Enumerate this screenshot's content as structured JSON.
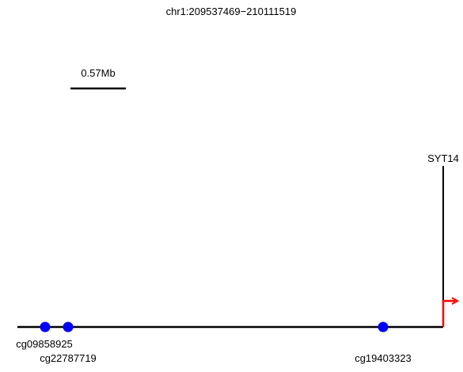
{
  "region": {
    "label": "chr1:209537469−210111519"
  },
  "scale_bar": {
    "label": "0.57Mb"
  },
  "gene": {
    "name": "SYT14",
    "strand": "+"
  },
  "probes": [
    {
      "id": "cg09858925"
    },
    {
      "id": "cg22787719"
    },
    {
      "id": "cg19403323"
    }
  ],
  "colors": {
    "axis": "#000000",
    "probe": "#0000ff",
    "tss_arrow": "#ff0000"
  }
}
